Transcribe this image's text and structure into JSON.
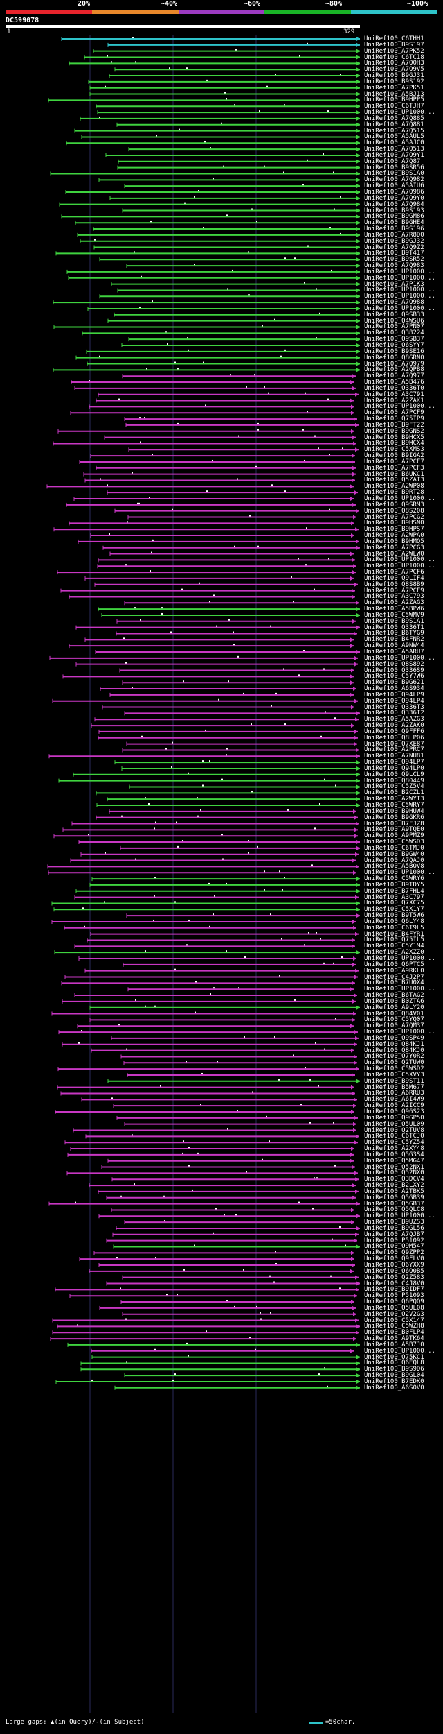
{
  "legend": {
    "labels": [
      "20%",
      "~40%",
      "~60%",
      "~80%",
      "~100%"
    ],
    "colors": [
      "#e8242c",
      "#e8872a",
      "#9b3ac0",
      "#19b326",
      "#2ec3c9"
    ]
  },
  "query": {
    "id": "DC599078",
    "start": "1",
    "end": "329"
  },
  "hit_colors": {
    "magenta": "#c837c3",
    "green": "#3fd33f",
    "cyan": "#2ec3c9"
  },
  "hits": [
    {
      "id": "UniRef100_C6THH1",
      "c": "cyan"
    },
    {
      "id": "UniRef100_B9S197",
      "c": "cyan"
    },
    {
      "id": "UniRef100_A7PK52",
      "c": "green"
    },
    {
      "id": "UniRef100_C6TC18",
      "c": "green"
    },
    {
      "id": "UniRef100_A7Q0H3",
      "c": "green"
    },
    {
      "id": "UniRef100_A7Q9V5",
      "c": "green"
    },
    {
      "id": "UniRef100_B9GJ31",
      "c": "green"
    },
    {
      "id": "UniRef100_B9S192",
      "c": "green"
    },
    {
      "id": "UniRef100_A7PK51",
      "c": "green"
    },
    {
      "id": "UniRef100_A5BJ13",
      "c": "green"
    },
    {
      "id": "UniRef100_B9HPP5",
      "c": "green"
    },
    {
      "id": "UniRef100_C6TJH7",
      "c": "green"
    },
    {
      "id": "UniRef100_UP1000...",
      "c": "green"
    },
    {
      "id": "UniRef100_A7Q885",
      "c": "green"
    },
    {
      "id": "UniRef100_A7Q881",
      "c": "green"
    },
    {
      "id": "UniRef100_A7Q515",
      "c": "green"
    },
    {
      "id": "UniRef100_A5AUL5",
      "c": "green"
    },
    {
      "id": "UniRef100_A5AJC0",
      "c": "green"
    },
    {
      "id": "UniRef100_A7Q513",
      "c": "green"
    },
    {
      "id": "UniRef100_A7Q9Y1",
      "c": "green"
    },
    {
      "id": "UniRef100_A7Q87",
      "c": "green"
    },
    {
      "id": "UniRef100_B9SR56",
      "c": "green"
    },
    {
      "id": "UniRef100_B9S1A0",
      "c": "green"
    },
    {
      "id": "UniRef100_A7Q982",
      "c": "green"
    },
    {
      "id": "UniRef100_A5AIU6",
      "c": "green"
    },
    {
      "id": "UniRef100_A7Q986",
      "c": "green"
    },
    {
      "id": "UniRef100_A7Q9Y0",
      "c": "green"
    },
    {
      "id": "UniRef100_A7Q984",
      "c": "green"
    },
    {
      "id": "UniRef100_B9S193",
      "c": "green"
    },
    {
      "id": "UniRef100_B9GM86",
      "c": "green"
    },
    {
      "id": "UniRef100_B9GHE4",
      "c": "green"
    },
    {
      "id": "UniRef100_B9S196",
      "c": "green"
    },
    {
      "id": "UniRef100_A7R8D0",
      "c": "green"
    },
    {
      "id": "UniRef100_B9GJ32",
      "c": "green"
    },
    {
      "id": "UniRef100_A7Q9Z2",
      "c": "green"
    },
    {
      "id": "UniRef100_B9T417",
      "c": "green"
    },
    {
      "id": "UniRef100_B9SR52",
      "c": "green"
    },
    {
      "id": "UniRef100_A7Q983",
      "c": "green"
    },
    {
      "id": "UniRef100_UP1000...",
      "c": "green"
    },
    {
      "id": "UniRef100_UP1000...",
      "c": "green"
    },
    {
      "id": "UniRef100_A7P1K3",
      "c": "green"
    },
    {
      "id": "UniRef100_UP1000...",
      "c": "green"
    },
    {
      "id": "UniRef100_UP1000...",
      "c": "green"
    },
    {
      "id": "UniRef100_A7Q988",
      "c": "green"
    },
    {
      "id": "UniRef100_UP1000...",
      "c": "green"
    },
    {
      "id": "UniRef100_Q9SB33",
      "c": "green"
    },
    {
      "id": "UniRef100_Q4WSU6",
      "c": "green"
    },
    {
      "id": "UniRef100_A7PN07",
      "c": "green"
    },
    {
      "id": "UniRef100_Q38224",
      "c": "green"
    },
    {
      "id": "UniRef100_Q9SB37",
      "c": "green"
    },
    {
      "id": "UniRef100_Q6SYY7",
      "c": "green"
    },
    {
      "id": "UniRef100_B9SE16",
      "c": "green"
    },
    {
      "id": "UniRef100_Q8GRN0",
      "c": "green"
    },
    {
      "id": "UniRef100_A7Q979",
      "c": "green"
    },
    {
      "id": "UniRef100_A2QPB8",
      "c": "green"
    },
    {
      "id": "UniRef100_A7Q977",
      "c": "magenta"
    },
    {
      "id": "UniRef100_A5B476",
      "c": "magenta"
    },
    {
      "id": "UniRef100_Q336T0",
      "c": "magenta"
    },
    {
      "id": "UniRef100_A3C791",
      "c": "magenta"
    },
    {
      "id": "UniRef100_A2ZAK1",
      "c": "magenta"
    },
    {
      "id": "UniRef100_UP1000...",
      "c": "magenta"
    },
    {
      "id": "UniRef100_A7PCF9",
      "c": "magenta"
    },
    {
      "id": "UniRef100_Q75IP9",
      "c": "magenta"
    },
    {
      "id": "UniRef100_B9FT22",
      "c": "magenta"
    },
    {
      "id": "UniRef100_B9GNS2",
      "c": "magenta"
    },
    {
      "id": "UniRef100_B9HCX5",
      "c": "magenta"
    },
    {
      "id": "UniRef100_B9HCX4",
      "c": "magenta"
    },
    {
      "id": "UniRef100_C5XMS3",
      "c": "magenta"
    },
    {
      "id": "UniRef100_B9IGA2",
      "c": "magenta"
    },
    {
      "id": "UniRef100_A7PCF7",
      "c": "magenta"
    },
    {
      "id": "UniRef100_A7PCF3",
      "c": "magenta"
    },
    {
      "id": "UniRef100_B6UKC1",
      "c": "magenta"
    },
    {
      "id": "UniRef100_Q5ZAT3",
      "c": "magenta"
    },
    {
      "id": "UniRef100_A2WP08",
      "c": "magenta"
    },
    {
      "id": "UniRef100_B9RT28",
      "c": "magenta"
    },
    {
      "id": "UniRef100_UP1000...",
      "c": "magenta"
    },
    {
      "id": "UniRef100_Q9SRM3",
      "c": "magenta"
    },
    {
      "id": "UniRef100_Q8S208",
      "c": "magenta"
    },
    {
      "id": "UniRef100_A7PCG2",
      "c": "magenta"
    },
    {
      "id": "UniRef100_B9HSN0",
      "c": "magenta"
    },
    {
      "id": "UniRef100_B9HPS7",
      "c": "magenta"
    },
    {
      "id": "UniRef100_A2WPA0",
      "c": "magenta"
    },
    {
      "id": "UniRef100_B9HMQ5",
      "c": "magenta"
    },
    {
      "id": "UniRef100_A7PCG3",
      "c": "magenta"
    },
    {
      "id": "UniRef100_A2WLW0",
      "c": "magenta"
    },
    {
      "id": "UniRef100_UP1000...",
      "c": "magenta"
    },
    {
      "id": "UniRef100_UP1000...",
      "c": "magenta"
    },
    {
      "id": "UniRef100_A7PCF6",
      "c": "magenta"
    },
    {
      "id": "UniRef100_Q9LIF4",
      "c": "magenta"
    },
    {
      "id": "UniRef100_Q8S8B9",
      "c": "magenta"
    },
    {
      "id": "UniRef100_A7PCF9",
      "c": "magenta"
    },
    {
      "id": "UniRef100_A3C793",
      "c": "magenta"
    },
    {
      "id": "UniRef100_A2ZAG3",
      "c": "magenta"
    },
    {
      "id": "UniRef100_A5BPW6",
      "c": "green"
    },
    {
      "id": "UniRef100_C5WMV9",
      "c": "green"
    },
    {
      "id": "UniRef100_B9S1A1",
      "c": "magenta"
    },
    {
      "id": "UniRef100_Q336T1",
      "c": "magenta"
    },
    {
      "id": "UniRef100_B6TYG9",
      "c": "magenta"
    },
    {
      "id": "UniRef100_B4FNR2",
      "c": "magenta"
    },
    {
      "id": "UniRef100_A9NW44",
      "c": "magenta"
    },
    {
      "id": "UniRef100_A5ARU7",
      "c": "magenta"
    },
    {
      "id": "UniRef100_UP1000...",
      "c": "magenta"
    },
    {
      "id": "UniRef100_Q8S892",
      "c": "magenta"
    },
    {
      "id": "UniRef100_Q336S9",
      "c": "magenta"
    },
    {
      "id": "UniRef100_C5Y7W6",
      "c": "magenta"
    },
    {
      "id": "UniRef100_B9G621",
      "c": "magenta"
    },
    {
      "id": "UniRef100_A6S934",
      "c": "magenta"
    },
    {
      "id": "UniRef100_Q94LP9",
      "c": "magenta"
    },
    {
      "id": "UniRef100_Q94LP4",
      "c": "magenta"
    },
    {
      "id": "UniRef100_Q336T3",
      "c": "magenta"
    },
    {
      "id": "UniRef100_Q336T2",
      "c": "magenta"
    },
    {
      "id": "UniRef100_A5AZG3",
      "c": "magenta"
    },
    {
      "id": "UniRef100_A2ZAK0",
      "c": "magenta"
    },
    {
      "id": "UniRef100_Q9FFF6",
      "c": "magenta"
    },
    {
      "id": "UniRef100_Q8LP06",
      "c": "magenta"
    },
    {
      "id": "UniRef100_Q7XE87",
      "c": "magenta"
    },
    {
      "id": "UniRef100_A2PRC7",
      "c": "magenta"
    },
    {
      "id": "UniRef100_A7NU81",
      "c": "magenta"
    },
    {
      "id": "UniRef100_Q94LP7",
      "c": "green"
    },
    {
      "id": "UniRef100_Q94LP0",
      "c": "green"
    },
    {
      "id": "UniRef100_Q9LCL9",
      "c": "green"
    },
    {
      "id": "UniRef100_Q80449",
      "c": "green"
    },
    {
      "id": "UniRef100_C5Z5V4",
      "c": "green"
    },
    {
      "id": "UniRef100_B2CZL1",
      "c": "green"
    },
    {
      "id": "UniRef100_A2WYT3",
      "c": "green"
    },
    {
      "id": "UniRef100_C5WRY7",
      "c": "green"
    },
    {
      "id": "UniRef100_B9HUW4",
      "c": "magenta"
    },
    {
      "id": "UniRef100_B9GKR6",
      "c": "magenta"
    },
    {
      "id": "UniRef100_B7FJZ8",
      "c": "magenta"
    },
    {
      "id": "UniRef100_A9TQE0",
      "c": "magenta"
    },
    {
      "id": "UniRef100_A9PMZ9",
      "c": "magenta"
    },
    {
      "id": "UniRef100_C5WSD3",
      "c": "magenta"
    },
    {
      "id": "UniRef100_C6TMJ0",
      "c": "magenta"
    },
    {
      "id": "UniRef100_B9GW40",
      "c": "magenta"
    },
    {
      "id": "UniRef100_A7QAJ0",
      "c": "magenta"
    },
    {
      "id": "UniRef100_A5BQV8",
      "c": "magenta"
    },
    {
      "id": "UniRef100_UP1000...",
      "c": "magenta"
    },
    {
      "id": "UniRef100_C5WRY6",
      "c": "green"
    },
    {
      "id": "UniRef100_B9TDY5",
      "c": "green"
    },
    {
      "id": "UniRef100_B7FHL4",
      "c": "green"
    },
    {
      "id": "UniRef100_A3C797",
      "c": "magenta"
    },
    {
      "id": "UniRef100_Q7XC75",
      "c": "green"
    },
    {
      "id": "UniRef100_C5X1Y7",
      "c": "green"
    },
    {
      "id": "UniRef100_B9T5W6",
      "c": "magenta"
    },
    {
      "id": "UniRef100_Q6LY48",
      "c": "magenta"
    },
    {
      "id": "UniRef100_C6T9L5",
      "c": "magenta"
    },
    {
      "id": "UniRef100_B4FYR1",
      "c": "magenta"
    },
    {
      "id": "UniRef100_Q75IL5",
      "c": "magenta"
    },
    {
      "id": "UniRef100_C5Y1M4",
      "c": "magenta"
    },
    {
      "id": "UniRef100_A2XZZ0",
      "c": "green"
    },
    {
      "id": "UniRef100_UP1000...",
      "c": "magenta"
    },
    {
      "id": "UniRef100_Q6PTC5",
      "c": "magenta"
    },
    {
      "id": "UniRef100_A9RKL0",
      "c": "magenta"
    },
    {
      "id": "UniRef100_C4J2P7",
      "c": "magenta"
    },
    {
      "id": "UniRef100_B7U0X4",
      "c": "magenta"
    },
    {
      "id": "UniRef100_UP1000...",
      "c": "magenta"
    },
    {
      "id": "UniRef100_B6TAG2",
      "c": "magenta"
    },
    {
      "id": "UniRef100_B0ZTA6",
      "c": "magenta"
    },
    {
      "id": "UniRef100_A9LY20",
      "c": "green"
    },
    {
      "id": "UniRef100_Q84V01",
      "c": "magenta"
    },
    {
      "id": "UniRef100_C5YQ07",
      "c": "magenta"
    },
    {
      "id": "UniRef100_A7QM37",
      "c": "magenta"
    },
    {
      "id": "UniRef100_UP1000...",
      "c": "magenta"
    },
    {
      "id": "UniRef100_Q9SP49",
      "c": "magenta"
    },
    {
      "id": "UniRef100_Q84KJ1",
      "c": "magenta"
    },
    {
      "id": "UniRef100_Q84KJ0",
      "c": "magenta"
    },
    {
      "id": "UniRef100_Q7Y0R2",
      "c": "magenta"
    },
    {
      "id": "UniRef100_Q2TUW0",
      "c": "magenta"
    },
    {
      "id": "UniRef100_C5WSD2",
      "c": "magenta"
    },
    {
      "id": "UniRef100_C5XVY3",
      "c": "magenta"
    },
    {
      "id": "UniRef100_B9ST11",
      "c": "green"
    },
    {
      "id": "UniRef100_B5M677",
      "c": "magenta"
    },
    {
      "id": "UniRef100_A6RRU3",
      "c": "magenta"
    },
    {
      "id": "UniRef100_A6I4W9",
      "c": "magenta"
    },
    {
      "id": "UniRef100_A2ICC9",
      "c": "magenta"
    },
    {
      "id": "UniRef100_Q96S23",
      "c": "magenta"
    },
    {
      "id": "UniRef100_Q9GP50",
      "c": "magenta"
    },
    {
      "id": "UniRef100_Q5UL09",
      "c": "magenta"
    },
    {
      "id": "UniRef100_Q2TUV8",
      "c": "magenta"
    },
    {
      "id": "UniRef100_C6TCJ0",
      "c": "magenta"
    },
    {
      "id": "UniRef100_C5YZ54",
      "c": "magenta"
    },
    {
      "id": "UniRef100_A2XY48",
      "c": "magenta"
    },
    {
      "id": "UniRef100_Q5G3S4",
      "c": "magenta"
    },
    {
      "id": "UniRef100_Q5MG47",
      "c": "magenta"
    },
    {
      "id": "UniRef100_Q52NX1",
      "c": "magenta"
    },
    {
      "id": "UniRef100_Q52NX0",
      "c": "magenta"
    },
    {
      "id": "UniRef100_Q3DCV4",
      "c": "magenta"
    },
    {
      "id": "UniRef100_B2LXY2",
      "c": "magenta"
    },
    {
      "id": "UniRef100_A2TBK5",
      "c": "magenta"
    },
    {
      "id": "UniRef100_Q5GB39",
      "c": "magenta"
    },
    {
      "id": "UniRef100_Q5GB37",
      "c": "magenta"
    },
    {
      "id": "UniRef100_Q5QLC8",
      "c": "magenta"
    },
    {
      "id": "UniRef100_UP1000...",
      "c": "magenta"
    },
    {
      "id": "UniRef100_B9UZS3",
      "c": "magenta"
    },
    {
      "id": "UniRef100_B9GL56",
      "c": "magenta"
    },
    {
      "id": "UniRef100_A7QJB7",
      "c": "magenta"
    },
    {
      "id": "UniRef100_P51092",
      "c": "magenta"
    },
    {
      "id": "UniRef100_Q9M547",
      "c": "green"
    },
    {
      "id": "UniRef100_Q9ZPP2",
      "c": "magenta"
    },
    {
      "id": "UniRef100_Q9FLV0",
      "c": "magenta"
    },
    {
      "id": "UniRef100_Q6YXX9",
      "c": "magenta"
    },
    {
      "id": "UniRef100_Q6Q0B5",
      "c": "magenta"
    },
    {
      "id": "UniRef100_Q2Z583",
      "c": "magenta"
    },
    {
      "id": "UniRef100_C4J8V0",
      "c": "magenta"
    },
    {
      "id": "UniRef100_B9IDF7",
      "c": "magenta"
    },
    {
      "id": "UniRef100_P51093",
      "c": "magenta"
    },
    {
      "id": "UniRef100_Q6PQQ9",
      "c": "magenta"
    },
    {
      "id": "UniRef100_Q5UL08",
      "c": "magenta"
    },
    {
      "id": "UniRef100_Q2V2G3",
      "c": "magenta"
    },
    {
      "id": "UniRef100_C5X147",
      "c": "magenta"
    },
    {
      "id": "UniRef100_C5WZH8",
      "c": "magenta"
    },
    {
      "id": "UniRef100_B0FLP4",
      "c": "magenta"
    },
    {
      "id": "UniRef100_A9TK64",
      "c": "magenta"
    },
    {
      "id": "UniRef100_A5B7J0",
      "c": "green"
    },
    {
      "id": "UniRef100_UP1000...",
      "c": "magenta"
    },
    {
      "id": "UniRef100_Q75KC1",
      "c": "green"
    },
    {
      "id": "UniRef100_Q6EQL8",
      "c": "green"
    },
    {
      "id": "UniRef100_B9S9D6",
      "c": "green"
    },
    {
      "id": "UniRef100_B9GL04",
      "c": "green"
    },
    {
      "id": "UniRef100_B7EDK0",
      "c": "green"
    },
    {
      "id": "UniRef100_A6S0V0",
      "c": "green"
    }
  ],
  "footer": {
    "large_gaps_label": "Large gaps:",
    "in_query": "▲(in Query)",
    "separator": "/",
    "in_subject": "-(in Subject)",
    "scale_label": "=50char."
  }
}
